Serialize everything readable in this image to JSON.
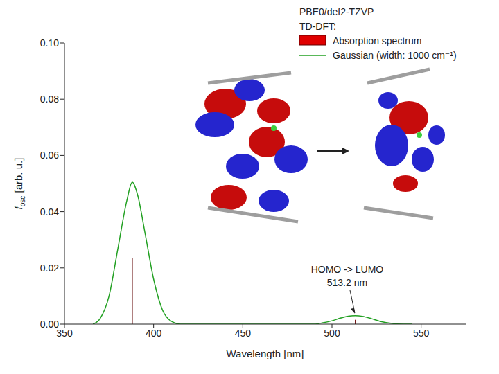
{
  "chart_data": {
    "type": "bar",
    "legend_title": [
      "PBE0/def2-TZVP",
      "TD-DFT:"
    ],
    "legend": "upper right",
    "grid": false,
    "x_label": "Wavelength [nm]",
    "y_label": {
      "symbol": "f",
      "subscript": "osc",
      "unit": "[arb. u.]"
    },
    "xlim": [
      350,
      575
    ],
    "xticks": [
      350,
      400,
      450,
      500,
      550
    ],
    "ylim": [
      0,
      0.1
    ],
    "yticks": [
      {
        "value": 0,
        "label": "0.00"
      },
      {
        "value": 0.02,
        "label": "0.02"
      },
      {
        "value": 0.04,
        "label": "0.04"
      },
      {
        "value": 0.06,
        "label": "0.06"
      },
      {
        "value": 0.08,
        "label": "0.08"
      },
      {
        "value": 0.1,
        "label": "0.10"
      }
    ],
    "series": [
      {
        "name": "Absorption spectrum",
        "type": "bar",
        "color": "#e00000",
        "x": [
          388,
          513.2
        ],
        "values": [
          0.0235,
          0.0015
        ]
      },
      {
        "name": "Gaussian (width: 1000 cm⁻¹)",
        "type": "line",
        "color": "#22a022",
        "x": [
          366,
          370,
          375,
          380,
          385,
          388,
          391,
          395,
          400,
          405,
          410,
          415,
          490,
          495,
          500,
          505,
          510,
          513,
          517,
          522,
          527,
          533,
          540,
          545
        ],
        "values": [
          0,
          0.002,
          0.01,
          0.027,
          0.044,
          0.0505,
          0.046,
          0.033,
          0.016,
          0.005,
          0.001,
          0,
          0,
          0.0005,
          0.0012,
          0.0022,
          0.0029,
          0.003,
          0.0028,
          0.002,
          0.001,
          0.0003,
          0,
          0
        ]
      }
    ],
    "annotations": [
      {
        "lines": [
          "HOMO -> LUMO",
          "513.2 nm"
        ],
        "x": 513.2,
        "y": 0.003
      }
    ]
  }
}
